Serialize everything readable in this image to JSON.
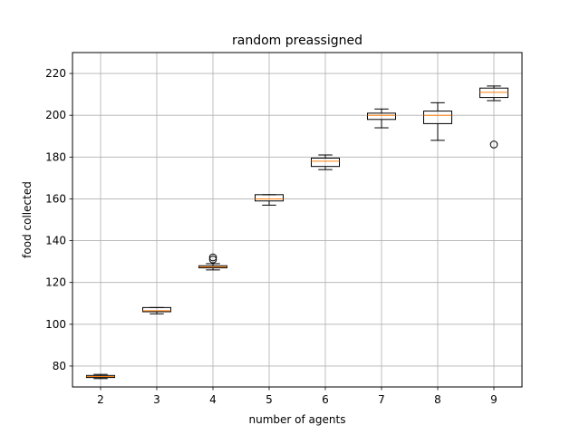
{
  "chart_data": {
    "type": "box",
    "title": "random preassigned",
    "xlabel": "number of agents",
    "ylabel": "food collected",
    "categories": [
      "2",
      "3",
      "4",
      "5",
      "6",
      "7",
      "8",
      "9"
    ],
    "ylim": [
      70,
      230
    ],
    "yticks": [
      80,
      100,
      120,
      140,
      160,
      180,
      200,
      220
    ],
    "grid": true,
    "boxes": [
      {
        "category": "2",
        "whisker_low": 74,
        "q1": 74.5,
        "median": 75,
        "q3": 75.5,
        "whisker_high": 76,
        "outliers": []
      },
      {
        "category": "3",
        "whisker_low": 105,
        "q1": 106,
        "median": 106.5,
        "q3": 108,
        "whisker_high": 108,
        "outliers": []
      },
      {
        "category": "4",
        "whisker_low": 126,
        "q1": 127,
        "median": 127.5,
        "q3": 128,
        "whisker_high": 129,
        "outliers": [
          131,
          132
        ]
      },
      {
        "category": "5",
        "whisker_low": 157,
        "q1": 159,
        "median": 160,
        "q3": 162,
        "whisker_high": 162,
        "outliers": []
      },
      {
        "category": "6",
        "whisker_low": 174,
        "q1": 175.5,
        "median": 178,
        "q3": 179.5,
        "whisker_high": 181,
        "outliers": []
      },
      {
        "category": "7",
        "whisker_low": 194,
        "q1": 198,
        "median": 200,
        "q3": 201,
        "whisker_high": 203,
        "outliers": []
      },
      {
        "category": "8",
        "whisker_low": 188,
        "q1": 196,
        "median": 200,
        "q3": 202,
        "whisker_high": 206,
        "outliers": []
      },
      {
        "category": "9",
        "whisker_low": 207,
        "q1": 208.5,
        "median": 211,
        "q3": 213,
        "whisker_high": 214,
        "outliers": [
          186
        ]
      }
    ],
    "colors": {
      "box": "#000000",
      "median": "#ff7f0e",
      "grid": "#b0b0b0"
    }
  }
}
